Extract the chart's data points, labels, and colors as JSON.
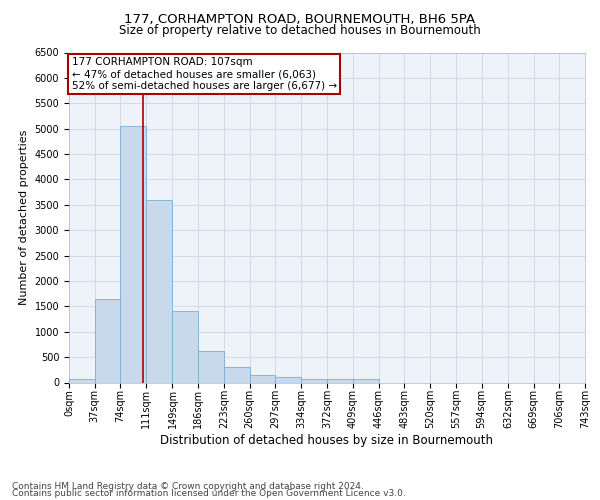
{
  "title": "177, CORHAMPTON ROAD, BOURNEMOUTH, BH6 5PA",
  "subtitle": "Size of property relative to detached houses in Bournemouth",
  "xlabel": "Distribution of detached houses by size in Bournemouth",
  "ylabel": "Number of detached properties",
  "bar_values": [
    75,
    1650,
    5050,
    3600,
    1400,
    620,
    300,
    150,
    110,
    75,
    60,
    75,
    0,
    0,
    0,
    0,
    0,
    0,
    0,
    0
  ],
  "bar_edges": [
    0,
    37,
    74,
    111,
    149,
    186,
    223,
    260,
    297,
    334,
    372,
    409,
    446,
    483,
    520,
    557,
    594,
    632,
    669,
    706,
    743
  ],
  "tick_labels": [
    "0sqm",
    "37sqm",
    "74sqm",
    "111sqm",
    "149sqm",
    "186sqm",
    "223sqm",
    "260sqm",
    "297sqm",
    "334sqm",
    "372sqm",
    "409sqm",
    "446sqm",
    "483sqm",
    "520sqm",
    "557sqm",
    "594sqm",
    "632sqm",
    "669sqm",
    "706sqm",
    "743sqm"
  ],
  "bar_color": "#c9d9ec",
  "bar_edge_color": "#7bafd4",
  "vline_x": 107,
  "vline_color": "#aa0000",
  "annotation_text": "177 CORHAMPTON ROAD: 107sqm\n← 47% of detached houses are smaller (6,063)\n52% of semi-detached houses are larger (6,677) →",
  "annotation_box_color": "#aa0000",
  "ylim": [
    0,
    6500
  ],
  "yticks": [
    0,
    500,
    1000,
    1500,
    2000,
    2500,
    3000,
    3500,
    4000,
    4500,
    5000,
    5500,
    6000,
    6500
  ],
  "grid_color": "#c8d0e0",
  "background_color": "#eef2f9",
  "footer_line1": "Contains HM Land Registry data © Crown copyright and database right 2024.",
  "footer_line2": "Contains public sector information licensed under the Open Government Licence v3.0.",
  "title_fontsize": 9.5,
  "subtitle_fontsize": 8.5,
  "xlabel_fontsize": 8.5,
  "ylabel_fontsize": 8,
  "tick_fontsize": 7,
  "annotation_fontsize": 7.5,
  "footer_fontsize": 6.5
}
